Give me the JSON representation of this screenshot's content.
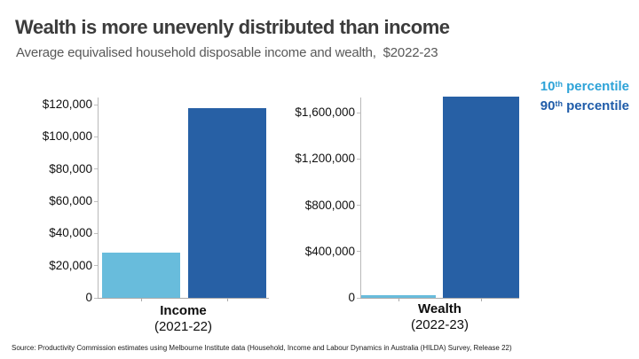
{
  "header": {
    "title": "Wealth is more unevenly distributed than income",
    "subtitle": "Average equivalised household disposable income and wealth,  $2022-23"
  },
  "legend": {
    "position": "top-right",
    "items": [
      {
        "value": "10",
        "sup": "th",
        "rest": " percentile",
        "color": "#2ea3d8"
      },
      {
        "value": "90",
        "sup": "th",
        "rest": " percentile",
        "color": "#1f5ca9"
      }
    ]
  },
  "chart_data": [
    {
      "type": "bar",
      "title": "Income (2021-22)",
      "category_label": "Income",
      "category_sublabel": "(2021-22)",
      "categories": [
        "10th percentile",
        "90th percentile"
      ],
      "series": [
        {
          "name": "10th percentile",
          "value": 28000,
          "color": "#68bcdc"
        },
        {
          "name": "90th percentile",
          "value": 118000,
          "color": "#2760a5"
        }
      ],
      "ylabel": "",
      "ylim": [
        0,
        120000
      ],
      "ytick_step": 20000,
      "yticks": [
        {
          "value": 0,
          "label": "0"
        },
        {
          "value": 20000,
          "label": "$20,000"
        },
        {
          "value": 40000,
          "label": "$40,000"
        },
        {
          "value": 60000,
          "label": "$60,000"
        },
        {
          "value": 80000,
          "label": "$80,000"
        },
        {
          "value": 100000,
          "label": "$100,000"
        },
        {
          "value": 120000,
          "label": "$120,000"
        }
      ],
      "grid": false
    },
    {
      "type": "bar",
      "title": "Wealth (2022-23)",
      "category_label": "Wealth",
      "category_sublabel": "(2022-23)",
      "categories": [
        "10th percentile",
        "90th percentile"
      ],
      "series": [
        {
          "name": "10th percentile",
          "value": 26000,
          "color": "#68bcdc"
        },
        {
          "name": "90th percentile",
          "value": 1740000,
          "color": "#2760a5"
        }
      ],
      "ylabel": "",
      "ylim": [
        0,
        1600000
      ],
      "ytick_step": 400000,
      "yticks": [
        {
          "value": 0,
          "label": "0"
        },
        {
          "value": 400000,
          "label": "$400,000"
        },
        {
          "value": 800000,
          "label": "$800,000"
        },
        {
          "value": 1200000,
          "label": "$1,200,000"
        },
        {
          "value": 1600000,
          "label": "$1,600,000"
        }
      ],
      "grid": false
    }
  ],
  "footer": {
    "source": "Source: Productivity Commission estimates using Melbourne Institute data (Household, Income and Labour Dynamics in Australia (HILDA) Survey, Release 22)"
  }
}
